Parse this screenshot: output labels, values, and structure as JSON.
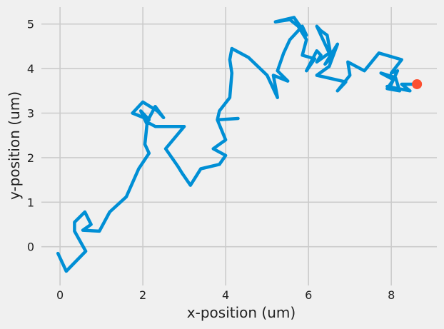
{
  "chart_data": {
    "type": "line",
    "title": "",
    "xlabel": "x-position (um)",
    "ylabel": "y-position (um)",
    "xlim": [
      -0.45,
      9.1
    ],
    "ylim": [
      -0.87,
      5.38
    ],
    "xticks": [
      0,
      2,
      4,
      6,
      8
    ],
    "yticks": [
      0,
      1,
      2,
      3,
      4,
      5
    ],
    "xtick_labels": [
      "0",
      "2",
      "4",
      "6",
      "8"
    ],
    "ytick_labels": [
      "0",
      "1",
      "2",
      "3",
      "4",
      "5"
    ],
    "grid": true,
    "series": [
      {
        "color": "#008fd5",
        "x": [
          -0.05,
          0.15,
          0.62,
          0.35,
          0.35,
          0.6,
          0.75,
          0.55,
          0.95,
          1.2,
          1.6,
          1.9,
          2.15,
          2.05,
          2.1,
          1.95,
          2.15,
          1.75,
          2.0,
          2.35,
          2.5,
          2.3,
          2.1,
          2.3,
          3.0,
          2.55,
          2.85,
          2.95,
          3.15,
          3.4,
          3.85,
          4.0,
          3.7,
          4.0,
          3.8,
          4.3,
          3.8,
          3.85,
          4.1,
          4.15,
          4.1,
          4.15,
          4.55,
          5.0,
          5.25,
          5.15,
          5.5,
          5.25,
          5.4,
          5.55,
          5.85,
          5.95,
          5.65,
          5.2,
          5.55,
          5.75,
          5.95,
          5.85,
          6.15,
          5.95,
          6.2,
          6.3,
          6.2,
          6.5,
          6.2,
          6.3,
          6.45,
          6.55,
          6.4,
          6.7,
          6.5,
          6.2,
          6.9,
          6.7,
          7.0,
          6.95,
          7.35,
          7.7,
          8.25,
          8.0,
          8.15,
          7.95,
          8.2,
          8.1,
          7.75,
          8.05,
          7.9,
          8.2,
          7.9,
          8.45,
          8.25,
          8.6
        ],
        "y": [
          -0.15,
          -0.55,
          -0.1,
          0.35,
          0.55,
          0.78,
          0.5,
          0.37,
          0.35,
          0.78,
          1.12,
          1.75,
          2.1,
          2.3,
          2.75,
          3.05,
          2.85,
          3.0,
          3.25,
          3.05,
          2.9,
          3.15,
          2.8,
          2.7,
          2.7,
          2.2,
          1.8,
          1.65,
          1.38,
          1.75,
          1.85,
          2.05,
          2.2,
          2.4,
          2.85,
          2.88,
          2.85,
          3.05,
          3.35,
          3.9,
          4.2,
          4.45,
          4.25,
          3.85,
          3.35,
          3.85,
          3.72,
          3.95,
          4.35,
          4.65,
          4.95,
          4.75,
          5.15,
          5.05,
          5.1,
          4.95,
          4.65,
          4.3,
          4.22,
          3.95,
          4.4,
          4.3,
          4.15,
          4.35,
          4.95,
          4.85,
          4.75,
          4.25,
          4.1,
          4.55,
          4.05,
          3.85,
          3.7,
          3.5,
          3.85,
          4.15,
          3.95,
          4.35,
          4.2,
          3.9,
          3.95,
          3.55,
          3.5,
          3.8,
          3.9,
          3.75,
          3.55,
          3.5,
          3.6,
          3.5,
          3.65,
          3.65
        ]
      }
    ],
    "end_marker": {
      "x": 8.62,
      "y": 3.65,
      "color": "#fc4f30"
    }
  }
}
